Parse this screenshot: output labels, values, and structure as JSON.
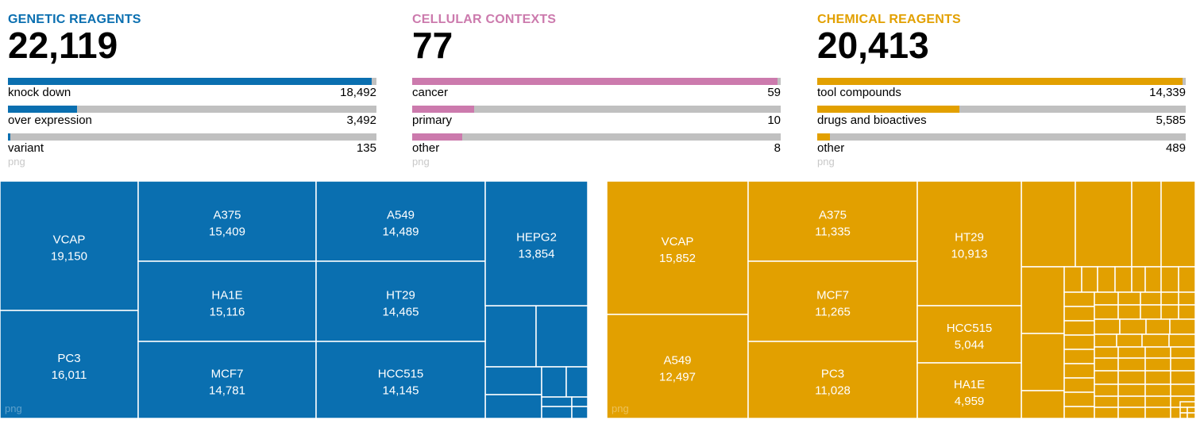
{
  "colors": {
    "genetic": "#0a6fb0",
    "cellular": "#cc7aad",
    "chemical": "#e2a000",
    "track": "#c0c0c0"
  },
  "panels": [
    {
      "id": "genetic",
      "heading": "GENETIC REAGENTS",
      "total": "22,119",
      "png": "png",
      "rows": [
        {
          "label": "knock down",
          "value": "18,492",
          "fraction": 0.988
        },
        {
          "label": "over expression",
          "value": "3,492",
          "fraction": 0.187
        },
        {
          "label": "variant",
          "value": "135",
          "fraction": 0.007
        }
      ]
    },
    {
      "id": "cellular",
      "heading": "CELLULAR CONTEXTS",
      "total": "77",
      "png": "png",
      "rows": [
        {
          "label": "cancer",
          "value": "59",
          "fraction": 0.992
        },
        {
          "label": "primary",
          "value": "10",
          "fraction": 0.168
        },
        {
          "label": "other",
          "value": "8",
          "fraction": 0.135
        }
      ]
    },
    {
      "id": "chemical",
      "heading": "CHEMICAL REAGENTS",
      "total": "20,413",
      "png": "png",
      "rows": [
        {
          "label": "tool compounds",
          "value": "14,339",
          "fraction": 0.992
        },
        {
          "label": "drugs and bioactives",
          "value": "5,585",
          "fraction": 0.386
        },
        {
          "label": "other",
          "value": "489",
          "fraction": 0.034
        }
      ]
    }
  ],
  "chart_data": [
    {
      "type": "treemap",
      "title": "",
      "series_color": "#0a6fb0",
      "labeled_cells": [
        {
          "name": "VCAP",
          "value": 19150
        },
        {
          "name": "PC3",
          "value": 16011
        },
        {
          "name": "A375",
          "value": 15409
        },
        {
          "name": "HA1E",
          "value": 15116
        },
        {
          "name": "MCF7",
          "value": 14781
        },
        {
          "name": "A549",
          "value": 14489
        },
        {
          "name": "HT29",
          "value": 14465
        },
        {
          "name": "HCC515",
          "value": 14145
        },
        {
          "name": "HEPG2",
          "value": 13854
        }
      ],
      "labels_text": [
        "VCAP",
        "19,150",
        "PC3",
        "16,011",
        "A375",
        "15,409",
        "HA1E",
        "15,116",
        "MCF7",
        "14,781",
        "A549",
        "14,489",
        "HT29",
        "14,465",
        "HCC515",
        "14,145",
        "HEPG2",
        "13,854"
      ],
      "png": "png"
    },
    {
      "type": "treemap",
      "title": "",
      "series_color": "#e2a000",
      "labeled_cells": [
        {
          "name": "VCAP",
          "value": 15852
        },
        {
          "name": "A549",
          "value": 12497
        },
        {
          "name": "A375",
          "value": 11335
        },
        {
          "name": "MCF7",
          "value": 11265
        },
        {
          "name": "PC3",
          "value": 11028
        },
        {
          "name": "HT29",
          "value": 10913
        },
        {
          "name": "HCC515",
          "value": 5044
        },
        {
          "name": "HA1E",
          "value": 4959
        }
      ],
      "labels_text": [
        "VCAP",
        "15,852",
        "A549",
        "12,497",
        "A375",
        "11,335",
        "MCF7",
        "11,265",
        "PC3",
        "11,028",
        "HT29",
        "10,913",
        "HCC515",
        "5,044",
        "HA1E",
        "4,959"
      ],
      "png": "png"
    }
  ]
}
